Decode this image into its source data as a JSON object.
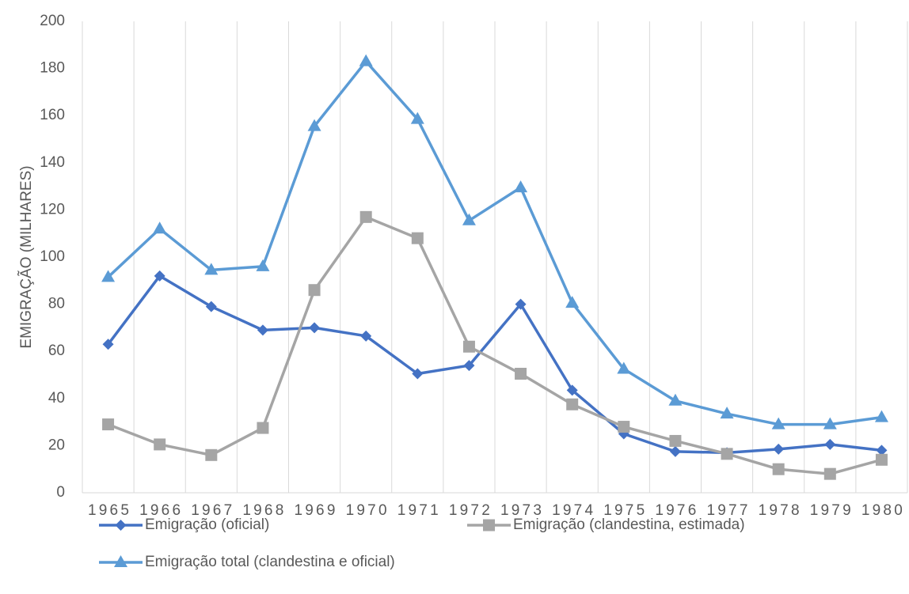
{
  "chart_data": {
    "type": "line",
    "y_label": "EMIGRAÇÃO (MILHARES)",
    "categories": [
      "1965",
      "1966",
      "1967",
      "1968",
      "1969",
      "1970",
      "1971",
      "1972",
      "1973",
      "1974",
      "1975",
      "1976",
      "1977",
      "1978",
      "1979",
      "1980"
    ],
    "series": [
      {
        "name": "Emigração (oficial)",
        "color": "#4472c4",
        "marker": "diamond",
        "values": [
          63,
          92,
          79,
          69,
          70,
          66.5,
          50.5,
          54,
          80,
          43.5,
          25,
          17.5,
          17,
          18.5,
          20.5,
          18
        ]
      },
      {
        "name": "Emigração (clandestina, estimada)",
        "color": "#a5a5a5",
        "marker": "square",
        "values": [
          29,
          20.5,
          16,
          27.5,
          86,
          117,
          108,
          62,
          50.5,
          37.5,
          28,
          22,
          16.5,
          10,
          8,
          14
        ]
      },
      {
        "name": "Emigração total (clandestina e oficial)",
        "color": "#5b9bd5",
        "marker": "triangle",
        "values": [
          91.5,
          112,
          94.5,
          96,
          155.5,
          183,
          158.5,
          115.5,
          129.5,
          80.5,
          52.5,
          39,
          33.5,
          29,
          29,
          32
        ]
      }
    ],
    "ylim": [
      0,
      200
    ],
    "yticks": [
      0,
      20,
      40,
      60,
      80,
      100,
      120,
      140,
      160,
      180,
      200
    ],
    "grid": "x",
    "legend": "bottom"
  }
}
